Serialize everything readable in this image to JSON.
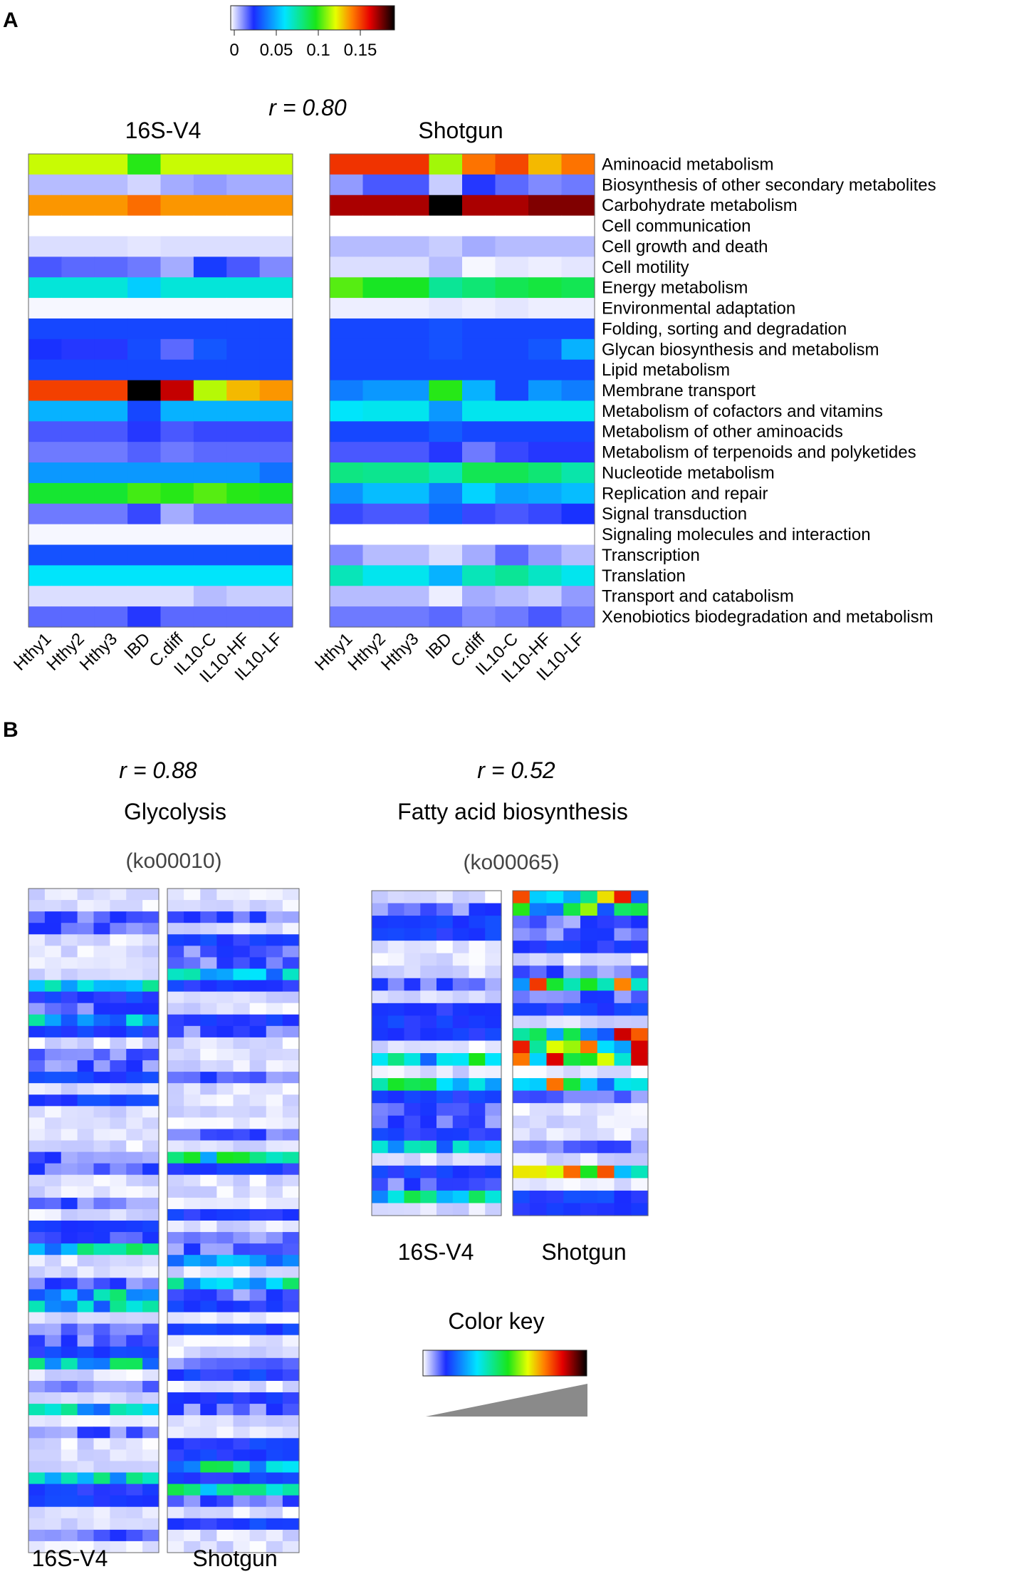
{
  "panel_a": {
    "letter": "A",
    "colorbar_ticks": [
      "0",
      "0.05",
      "0.1",
      "0.15"
    ],
    "r_label": "r = 0.80",
    "left_title": "16S-V4",
    "right_title": "Shotgun"
  },
  "panel_b": {
    "letter": "B",
    "glyco": {
      "r_label": "r = 0.88",
      "title": "Glycolysis",
      "ko": "(ko00010)"
    },
    "fatty": {
      "r_label": "r = 0.52",
      "title": "Fatty acid biosynthesis",
      "ko": "(ko00065)"
    },
    "bottom_labels": {
      "left": "16S-V4",
      "right": "Shotgun"
    },
    "color_key_title": "Color key"
  },
  "chart_data": [
    {
      "type": "heatmap",
      "id": "A-16S",
      "title": "16S-V4",
      "scale": [
        0,
        0.18
      ],
      "columns": [
        "Hthy1",
        "Hthy2",
        "Hthy3",
        "IBD",
        "C.diff",
        "IL10-C",
        "IL10-HF",
        "IL10-LF"
      ],
      "rows": [
        "Aminoacid metabolism",
        "Biosynthesis of other secondary metabolites",
        "Carbohydrate metabolism",
        "Cell communication",
        "Cell growth and death",
        "Cell motility",
        "Energy metabolism",
        "Environmental adaptation",
        "Folding, sorting and degradation",
        "Glycan biosynthesis and metabolism",
        "Lipid metabolism",
        "Membrane transport",
        "Metabolism of cofactors and vitamins",
        "Metabolism of other aminoacids",
        "Metabolism of terpenoids and polyketides",
        "Nucleotide metabolism",
        "Replication and repair",
        "Signal transduction",
        "Signaling molecules and interaction",
        "Transcription",
        "Translation",
        "Transport and catabolism",
        "Xenobiotics biodegradation and metabolism"
      ],
      "values": [
        [
          0.112,
          0.112,
          0.112,
          0.095,
          0.112,
          0.112,
          0.112,
          0.112
        ],
        [
          0.008,
          0.008,
          0.008,
          0.005,
          0.01,
          0.012,
          0.01,
          0.01
        ],
        [
          0.13,
          0.13,
          0.13,
          0.136,
          0.13,
          0.13,
          0.13,
          0.13
        ],
        [
          0.0,
          0.0,
          0.0,
          0.0,
          0.0,
          0.0,
          0.0,
          0.0
        ],
        [
          0.004,
          0.004,
          0.004,
          0.003,
          0.004,
          0.004,
          0.004,
          0.004
        ],
        [
          0.02,
          0.018,
          0.018,
          0.016,
          0.01,
          0.028,
          0.02,
          0.014
        ],
        [
          0.065,
          0.065,
          0.065,
          0.055,
          0.065,
          0.065,
          0.065,
          0.065
        ],
        [
          0.001,
          0.001,
          0.001,
          0.001,
          0.001,
          0.001,
          0.001,
          0.001
        ],
        [
          0.03,
          0.03,
          0.03,
          0.03,
          0.03,
          0.03,
          0.03,
          0.03
        ],
        [
          0.026,
          0.024,
          0.024,
          0.031,
          0.018,
          0.033,
          0.03,
          0.03
        ],
        [
          0.03,
          0.03,
          0.03,
          0.03,
          0.03,
          0.03,
          0.03,
          0.03
        ],
        [
          0.143,
          0.143,
          0.143,
          0.18,
          0.157,
          0.11,
          0.125,
          0.13
        ],
        [
          0.05,
          0.05,
          0.05,
          0.03,
          0.05,
          0.05,
          0.05,
          0.05
        ],
        [
          0.02,
          0.02,
          0.02,
          0.024,
          0.02,
          0.022,
          0.022,
          0.022
        ],
        [
          0.016,
          0.016,
          0.016,
          0.019,
          0.016,
          0.018,
          0.018,
          0.018
        ],
        [
          0.045,
          0.045,
          0.045,
          0.045,
          0.045,
          0.045,
          0.045,
          0.038
        ],
        [
          0.09,
          0.09,
          0.09,
          0.098,
          0.095,
          0.1,
          0.095,
          0.092
        ],
        [
          0.016,
          0.016,
          0.016,
          0.022,
          0.01,
          0.016,
          0.016,
          0.016
        ],
        [
          0.001,
          0.001,
          0.001,
          0.001,
          0.001,
          0.001,
          0.001,
          0.001
        ],
        [
          0.032,
          0.032,
          0.032,
          0.032,
          0.032,
          0.032,
          0.032,
          0.032
        ],
        [
          0.06,
          0.06,
          0.06,
          0.06,
          0.06,
          0.06,
          0.06,
          0.06
        ],
        [
          0.004,
          0.004,
          0.004,
          0.004,
          0.004,
          0.008,
          0.006,
          0.006
        ],
        [
          0.018,
          0.018,
          0.018,
          0.024,
          0.018,
          0.018,
          0.018,
          0.018
        ]
      ]
    },
    {
      "type": "heatmap",
      "id": "A-Shotgun",
      "title": "Shotgun",
      "scale": [
        0,
        0.18
      ],
      "columns": [
        "Hthy1",
        "Hthy2",
        "Hthy3",
        "IBD",
        "C.diff",
        "IL10-C",
        "IL10-HF",
        "IL10-LF"
      ],
      "rows": [
        "Aminoacid metabolism",
        "Biosynthesis of other secondary metabolites",
        "Carbohydrate metabolism",
        "Cell communication",
        "Cell growth and death",
        "Cell motility",
        "Energy metabolism",
        "Environmental adaptation",
        "Folding, sorting and degradation",
        "Glycan biosynthesis and metabolism",
        "Lipid metabolism",
        "Membrane transport",
        "Metabolism of cofactors and vitamins",
        "Metabolism of other aminoacids",
        "Metabolism of terpenoids and polyketides",
        "Nucleotide metabolism",
        "Replication and repair",
        "Signal transduction",
        "Signaling molecules and interaction",
        "Transcription",
        "Translation",
        "Transport and catabolism",
        "Xenobiotics biodegradation and metabolism"
      ],
      "values": [
        [
          0.145,
          0.145,
          0.145,
          0.108,
          0.135,
          0.142,
          0.125,
          0.135
        ],
        [
          0.012,
          0.02,
          0.02,
          0.006,
          0.024,
          0.018,
          0.014,
          0.016
        ],
        [
          0.16,
          0.16,
          0.16,
          0.185,
          0.16,
          0.16,
          0.165,
          0.165
        ],
        [
          0.0,
          0.0,
          0.0,
          0.0,
          0.0,
          0.0,
          0.0,
          0.0
        ],
        [
          0.008,
          0.008,
          0.008,
          0.006,
          0.01,
          0.008,
          0.008,
          0.008
        ],
        [
          0.004,
          0.004,
          0.004,
          0.008,
          0.001,
          0.003,
          0.002,
          0.003
        ],
        [
          0.1,
          0.092,
          0.092,
          0.075,
          0.08,
          0.085,
          0.088,
          0.085
        ],
        [
          0.002,
          0.002,
          0.002,
          0.003,
          0.002,
          0.003,
          0.002,
          0.002
        ],
        [
          0.03,
          0.03,
          0.03,
          0.032,
          0.03,
          0.03,
          0.03,
          0.03
        ],
        [
          0.03,
          0.03,
          0.03,
          0.032,
          0.03,
          0.03,
          0.033,
          0.05
        ],
        [
          0.03,
          0.03,
          0.03,
          0.03,
          0.03,
          0.03,
          0.03,
          0.03
        ],
        [
          0.04,
          0.045,
          0.045,
          0.095,
          0.05,
          0.03,
          0.045,
          0.04
        ],
        [
          0.06,
          0.062,
          0.062,
          0.045,
          0.062,
          0.062,
          0.062,
          0.062
        ],
        [
          0.03,
          0.03,
          0.03,
          0.034,
          0.03,
          0.03,
          0.03,
          0.03
        ],
        [
          0.02,
          0.02,
          0.02,
          0.024,
          0.016,
          0.022,
          0.024,
          0.024
        ],
        [
          0.078,
          0.076,
          0.076,
          0.07,
          0.085,
          0.085,
          0.08,
          0.072
        ],
        [
          0.044,
          0.052,
          0.052,
          0.04,
          0.056,
          0.046,
          0.048,
          0.052
        ],
        [
          0.022,
          0.02,
          0.02,
          0.034,
          0.022,
          0.02,
          0.022,
          0.026
        ],
        [
          0.0,
          0.0,
          0.0,
          0.0,
          0.0,
          0.0,
          0.0,
          0.0
        ],
        [
          0.014,
          0.008,
          0.008,
          0.004,
          0.01,
          0.018,
          0.012,
          0.008
        ],
        [
          0.07,
          0.062,
          0.062,
          0.05,
          0.07,
          0.075,
          0.068,
          0.062
        ],
        [
          0.008,
          0.008,
          0.008,
          0.002,
          0.01,
          0.008,
          0.006,
          0.012
        ],
        [
          0.016,
          0.016,
          0.016,
          0.018,
          0.014,
          0.016,
          0.02,
          0.016
        ]
      ]
    }
  ]
}
